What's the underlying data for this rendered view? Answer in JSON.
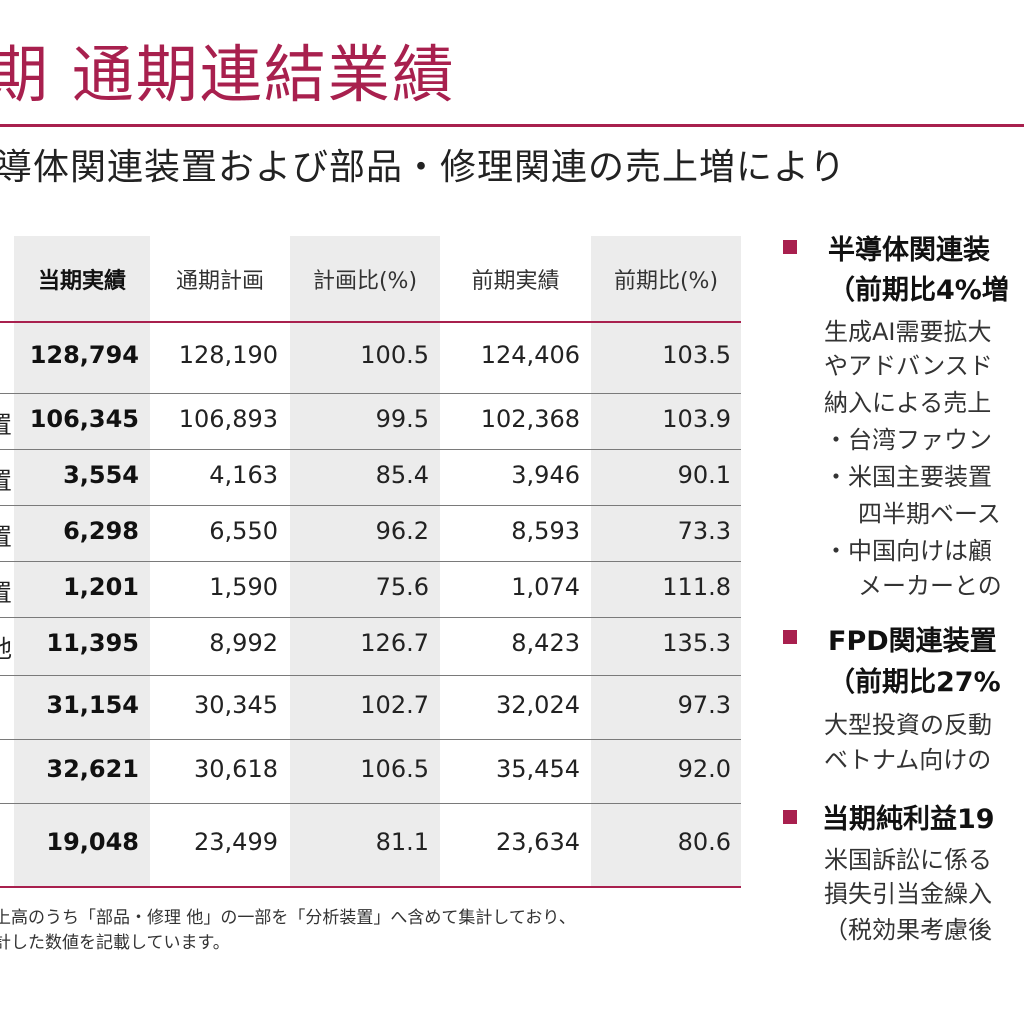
{
  "header": {
    "title": "期 通期連結業績",
    "subtitle": "導体関連装置および部品・修理関連の売上増により"
  },
  "table": {
    "columns": [
      "当期実績",
      "通期計画",
      "計画比(%)",
      "前期実績",
      "前期比(%)"
    ],
    "rows": [
      {
        "label": "",
        "values": [
          "128,794",
          "128,190",
          "100.5",
          "124,406",
          "103.5"
        ]
      },
      {
        "label": "置",
        "values": [
          "106,345",
          "106,893",
          "99.5",
          "102,368",
          "103.9"
        ]
      },
      {
        "label": "置",
        "values": [
          "3,554",
          "4,163",
          "85.4",
          "3,946",
          "90.1"
        ]
      },
      {
        "label": "置",
        "values": [
          "6,298",
          "6,550",
          "96.2",
          "8,593",
          "73.3"
        ]
      },
      {
        "label": "置",
        "values": [
          "1,201",
          "1,590",
          "75.6",
          "1,074",
          "111.8"
        ]
      },
      {
        "label": "他",
        "values": [
          "11,395",
          "8,992",
          "126.7",
          "8,423",
          "135.3"
        ]
      },
      {
        "label": "",
        "values": [
          "31,154",
          "30,345",
          "102.7",
          "32,024",
          "97.3"
        ]
      },
      {
        "label": "",
        "values": [
          "32,621",
          "30,618",
          "106.5",
          "35,454",
          "92.0"
        ]
      },
      {
        "label": "",
        "values": [
          "19,048",
          "23,499",
          "81.1",
          "23,634",
          "80.6"
        ]
      }
    ]
  },
  "notes": {
    "line1": "上高のうち「部品・修理 他」の一部を「分析装置」へ含めて集計しており、",
    "line2": "計した数値を記載しています。"
  },
  "sidepanel": {
    "s1_head1": "半導体関連装",
    "s1_head2": "（前期比4%増",
    "s1_l1": "生成AI需要拡大",
    "s1_l2": "やアドバンスド",
    "s1_l3": "納入による売上",
    "s1_l4": "・台湾ファウン",
    "s1_l5": "・米国主要装置",
    "s1_l6": "四半期ベース",
    "s1_l7": "・中国向けは顧",
    "s1_l8": "メーカーとの",
    "s2_head1": "FPD関連装置",
    "s2_head2": "（前期比27%",
    "s2_l1": "大型投資の反動",
    "s2_l2": "ベトナム向けの",
    "s3_head1": "当期純利益19",
    "s3_l1": "米国訴訟に係る",
    "s3_l2": "損失引当金繰入",
    "s3_l3": "（税効果考慮後"
  }
}
